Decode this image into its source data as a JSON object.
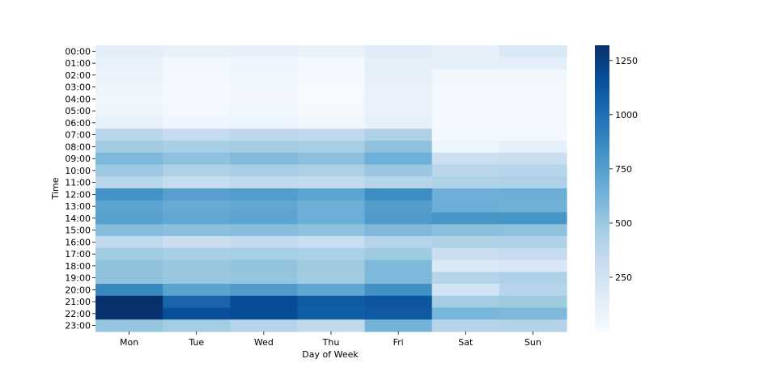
{
  "chart_data": {
    "type": "heatmap",
    "title": "",
    "xlabel": "Day of Week",
    "ylabel": "Time",
    "x": [
      "Mon",
      "Tue",
      "Wed",
      "Thu",
      "Fri",
      "Sat",
      "Sun"
    ],
    "y": [
      "00:00",
      "01:00",
      "02:00",
      "03:00",
      "04:00",
      "05:00",
      "06:00",
      "07:00",
      "08:00",
      "09:00",
      "10:00",
      "11:00",
      "12:00",
      "13:00",
      "14:00",
      "15:00",
      "16:00",
      "17:00",
      "18:00",
      "19:00",
      "20:00",
      "21:00",
      "22:00",
      "23:00"
    ],
    "values": [
      [
        130,
        100,
        110,
        90,
        150,
        110,
        200
      ],
      [
        90,
        40,
        60,
        30,
        120,
        110,
        130
      ],
      [
        80,
        30,
        50,
        20,
        110,
        40,
        40
      ],
      [
        60,
        25,
        40,
        15,
        100,
        30,
        30
      ],
      [
        50,
        25,
        40,
        15,
        90,
        30,
        30
      ],
      [
        60,
        30,
        50,
        20,
        90,
        30,
        30
      ],
      [
        100,
        60,
        70,
        40,
        110,
        30,
        30
      ],
      [
        380,
        330,
        370,
        360,
        430,
        30,
        30
      ],
      [
        480,
        450,
        470,
        460,
        550,
        70,
        110
      ],
      [
        600,
        550,
        590,
        560,
        650,
        290,
        300
      ],
      [
        500,
        430,
        460,
        440,
        510,
        380,
        390
      ],
      [
        380,
        320,
        360,
        340,
        390,
        420,
        430
      ],
      [
        820,
        740,
        760,
        720,
        850,
        650,
        660
      ],
      [
        720,
        680,
        700,
        660,
        760,
        660,
        640
      ],
      [
        740,
        700,
        720,
        660,
        770,
        800,
        800
      ],
      [
        580,
        560,
        570,
        550,
        600,
        560,
        550
      ],
      [
        360,
        300,
        340,
        310,
        400,
        420,
        430
      ],
      [
        480,
        450,
        460,
        440,
        490,
        300,
        330
      ],
      [
        540,
        510,
        530,
        490,
        600,
        190,
        210
      ],
      [
        540,
        510,
        520,
        480,
        600,
        400,
        430
      ],
      [
        870,
        730,
        770,
        710,
        830,
        250,
        390
      ],
      [
        1320,
        1050,
        1180,
        1100,
        1130,
        470,
        490
      ],
      [
        1310,
        1170,
        1180,
        1090,
        1110,
        620,
        600
      ],
      [
        520,
        470,
        400,
        350,
        630,
        400,
        410
      ]
    ],
    "vmin": 0,
    "vmax": 1320,
    "colorbar_ticks": [
      250,
      500,
      750,
      1000,
      1250
    ],
    "colormap": "Blues",
    "colors": {
      "low": "#f7fbff",
      "high": "#08306b"
    },
    "grid": false,
    "legend": "colorbar-right"
  }
}
